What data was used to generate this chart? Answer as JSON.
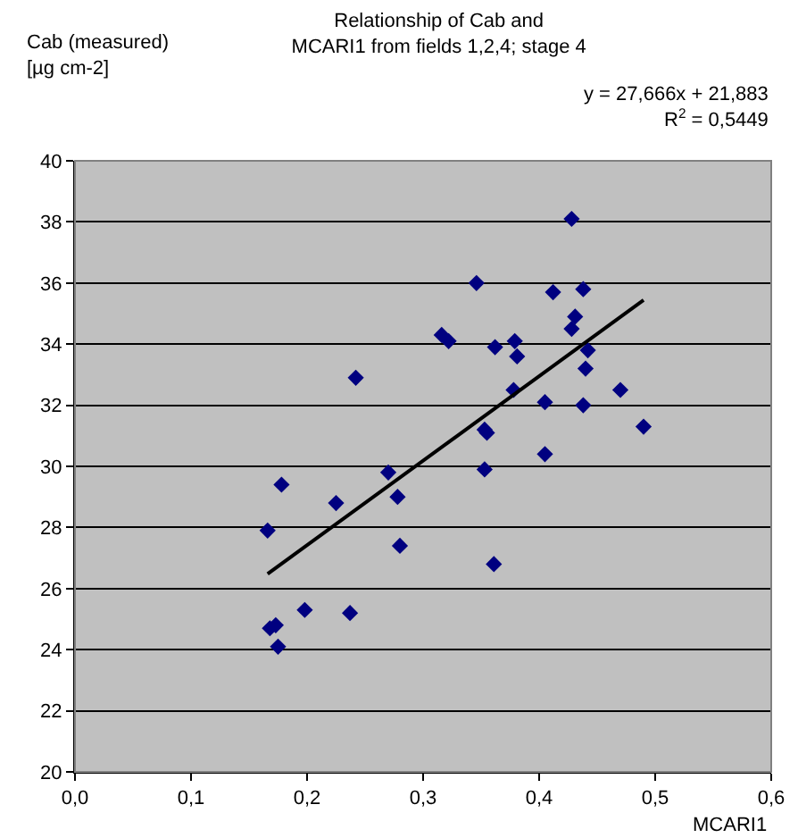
{
  "chart_data": {
    "type": "scatter",
    "title": "Relationship of Cab and\nMCARI1 from fields 1,2,4; stage 4",
    "xlabel": "MCARI1",
    "ylabel": "Cab (measured)\n[µg cm-2]",
    "annotations": [
      "y = 27,666x + 21,883",
      "R$^{2}$ = 0,5449"
    ],
    "xlim": [
      0,
      0.6
    ],
    "ylim": [
      20,
      40
    ],
    "xticks": [
      {
        "value": 0,
        "label": "0,0"
      },
      {
        "value": 0.1,
        "label": "0,1"
      },
      {
        "value": 0.2,
        "label": "0,2"
      },
      {
        "value": 0.3,
        "label": "0,3"
      },
      {
        "value": 0.4,
        "label": "0,4"
      },
      {
        "value": 0.5,
        "label": "0,5"
      },
      {
        "value": 0.6,
        "label": "0,6"
      }
    ],
    "yticks": [
      20,
      22,
      24,
      26,
      28,
      30,
      32,
      34,
      36,
      38,
      40
    ],
    "grid": "y",
    "series": [
      {
        "color": "#000080",
        "marker": "diamond",
        "x": [
          0.166,
          0.168,
          0.173,
          0.175,
          0.178,
          0.198,
          0.225,
          0.237,
          0.242,
          0.27,
          0.278,
          0.28,
          0.316,
          0.322,
          0.346,
          0.353,
          0.353,
          0.355,
          0.361,
          0.362,
          0.378,
          0.379,
          0.381,
          0.405,
          0.405,
          0.412,
          0.428,
          0.428,
          0.431,
          0.438,
          0.438,
          0.44,
          0.442,
          0.47,
          0.49
        ],
        "values": [
          27.9,
          24.7,
          24.8,
          24.1,
          29.4,
          25.3,
          28.8,
          25.2,
          32.9,
          29.8,
          29.0,
          27.4,
          34.3,
          34.1,
          36.0,
          29.9,
          31.2,
          31.1,
          26.8,
          33.9,
          32.5,
          34.1,
          33.6,
          30.4,
          32.1,
          35.7,
          38.1,
          34.5,
          34.9,
          35.8,
          32.0,
          33.2,
          33.8,
          32.5,
          31.3
        ]
      },
      {
        "type": "line",
        "color": "#000000",
        "x": [
          0.166,
          0.49
        ],
        "values": [
          26.48,
          35.44
        ]
      }
    ]
  }
}
